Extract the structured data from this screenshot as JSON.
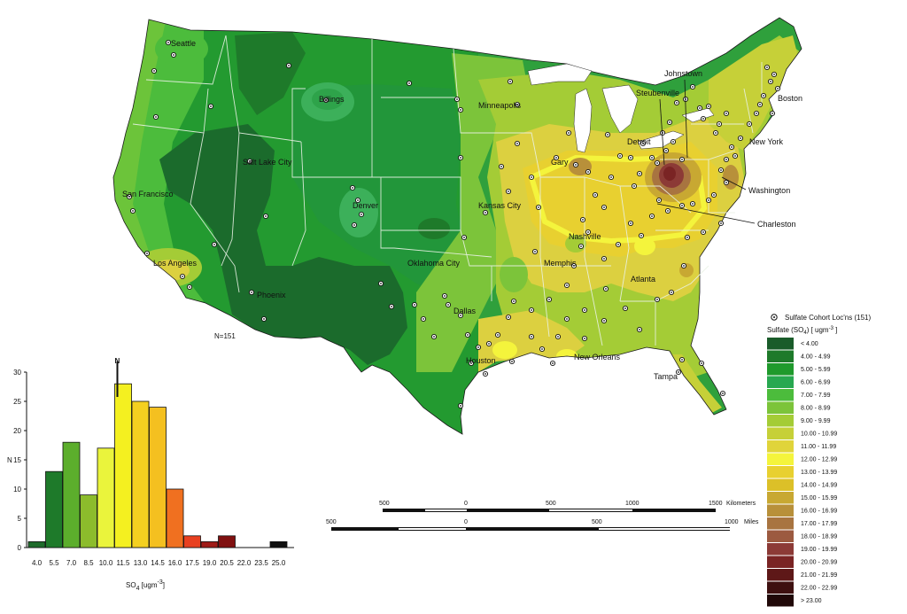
{
  "map": {
    "n_label": "N=151",
    "cities": [
      {
        "name": "Seattle"
      },
      {
        "name": "Billings"
      },
      {
        "name": "Minneapolis"
      },
      {
        "name": "Johnstown"
      },
      {
        "name": "Steubenville"
      },
      {
        "name": "Boston"
      },
      {
        "name": "Detroit"
      },
      {
        "name": "New York"
      },
      {
        "name": "Gary"
      },
      {
        "name": "Salt Lake City"
      },
      {
        "name": "San Francisco"
      },
      {
        "name": "Denver"
      },
      {
        "name": "Kansas City"
      },
      {
        "name": "Washington"
      },
      {
        "name": "Charleston"
      },
      {
        "name": "Nashville"
      },
      {
        "name": "Los Angeles"
      },
      {
        "name": "Oklahoma City"
      },
      {
        "name": "Memphis"
      },
      {
        "name": "Atlanta"
      },
      {
        "name": "Phoenix"
      },
      {
        "name": "Dallas"
      },
      {
        "name": "Houston"
      },
      {
        "name": "New Orleans"
      },
      {
        "name": "Tampa"
      }
    ]
  },
  "scalebar": {
    "km_ticks": [
      "500",
      "0",
      "500",
      "1000",
      "1500"
    ],
    "km_unit": "Kilometers",
    "mi_ticks": [
      "500",
      "0",
      "500",
      "1000"
    ],
    "mi_unit": "Miles"
  },
  "legend": {
    "site_label": "Sulfate Cohort Loc'ns (151)",
    "title": "Sulfate (SO",
    "title_sub": "4",
    "title_tail": ")  [ ugm",
    "title_sup": "-3",
    "title_end": " ]",
    "classes": [
      {
        "label": "<  4.00",
        "color": "#1a5c2a"
      },
      {
        "label": "4.00  -  4.99",
        "color": "#1e7a2a"
      },
      {
        "label": "5.00  -  5.99",
        "color": "#1f9a2c"
      },
      {
        "label": "6.00  -  6.99",
        "color": "#28a850"
      },
      {
        "label": "7.00  -  7.99",
        "color": "#4cbc3c"
      },
      {
        "label": "8.00  -  8.99",
        "color": "#7cc43a"
      },
      {
        "label": "9.00  -  9.99",
        "color": "#a4cc36"
      },
      {
        "label": "10.00  -  10.99",
        "color": "#c6d038"
      },
      {
        "label": "11.00  -  11.99",
        "color": "#e0d43a"
      },
      {
        "label": "12.00  -  12.99",
        "color": "#f4f43c"
      },
      {
        "label": "13.00  -  13.99",
        "color": "#e8d030"
      },
      {
        "label": "14.00  -  14.99",
        "color": "#dcc028"
      },
      {
        "label": "15.00  -  15.99",
        "color": "#c8a832"
      },
      {
        "label": "16.00  -  16.99",
        "color": "#b8903a"
      },
      {
        "label": "17.00  -  17.99",
        "color": "#a87440"
      },
      {
        "label": "18.00  -  18.99",
        "color": "#9c5a40"
      },
      {
        "label": "19.00  -  19.99",
        "color": "#8c3a36"
      },
      {
        "label": "20.00  -  20.99",
        "color": "#7a2424"
      },
      {
        "label": "21.00  -  21.99",
        "color": "#5e1818"
      },
      {
        "label": "22.00  -  22.99",
        "color": "#3e1010"
      },
      {
        "label": ">  23.00",
        "color": "#200808"
      }
    ]
  },
  "chart_data": {
    "type": "bar",
    "xlabel_main": "SO",
    "xlabel_sub": "4",
    "xlabel_tail": " [ugm",
    "xlabel_sup": "-3",
    "xlabel_end": "]",
    "ylabel": "N",
    "ylim": [
      0,
      30
    ],
    "y_ticks": [
      "0",
      "5",
      "10",
      "15",
      "20",
      "25",
      "30"
    ],
    "x_tick_labels": [
      "4.0",
      "5.5",
      "7.0",
      "8.5",
      "10.0",
      "11.5",
      "13.0",
      "14.5",
      "16.0",
      "17.5",
      "19.0",
      "20.5",
      "22.0",
      "23.5",
      "25.0"
    ],
    "marker_label": "N",
    "marker_value": 11.0,
    "bins": [
      {
        "x": 4.0,
        "value": 1,
        "color": "#1e6b2a"
      },
      {
        "x": 5.5,
        "value": 13,
        "color": "#1e7a2a"
      },
      {
        "x": 7.0,
        "value": 18,
        "color": "#5cae2c"
      },
      {
        "x": 8.5,
        "value": 9,
        "color": "#8cbc2c"
      },
      {
        "x": 10.0,
        "value": 17,
        "color": "#eaf43c"
      },
      {
        "x": 11.5,
        "value": 28,
        "color": "#f4f020"
      },
      {
        "x": 13.0,
        "value": 25,
        "color": "#f4d020"
      },
      {
        "x": 14.5,
        "value": 24,
        "color": "#f4c020"
      },
      {
        "x": 16.0,
        "value": 10,
        "color": "#f07020"
      },
      {
        "x": 17.5,
        "value": 2,
        "color": "#e84020"
      },
      {
        "x": 19.0,
        "value": 1,
        "color": "#a01c18"
      },
      {
        "x": 20.5,
        "value": 2,
        "color": "#801010"
      },
      {
        "x": 22.0,
        "value": 0,
        "color": "#601010"
      },
      {
        "x": 23.5,
        "value": 0,
        "color": "#400808"
      },
      {
        "x": 25.0,
        "value": 1,
        "color": "#101010"
      }
    ]
  }
}
